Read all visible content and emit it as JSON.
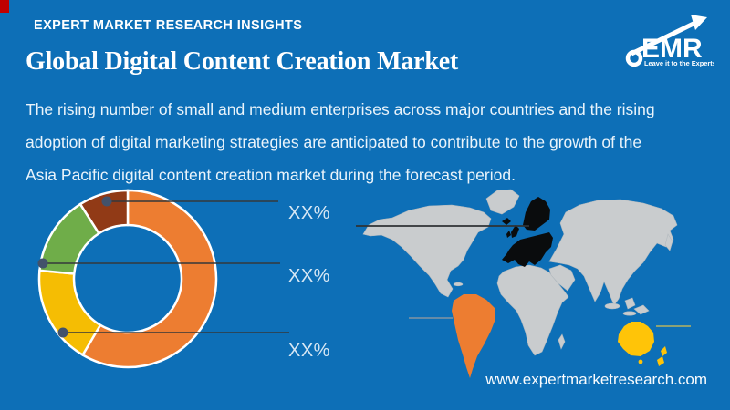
{
  "page": {
    "background": "#0D6FB7",
    "accent_red": "#C00000",
    "website": "www.expertmarketresearch.com"
  },
  "header": {
    "eyebrow": "EXPERT MARKET RESEARCH INSIGHTS",
    "title": "Global Digital Content Creation Market",
    "description_lines": [
      "The rising number of small and medium enterprises across major countries and the rising",
      "adoption of digital marketing strategies are anticipated to contribute to the growth of the",
      "Asia Pacific digital content creation market during the forecast period."
    ]
  },
  "logo": {
    "text": "EMR",
    "tagline": "Leave it to the Experts!"
  },
  "chart_data": {
    "type": "pie",
    "variant": "donut",
    "title": "Digital content creation market share by segment (values masked)",
    "direction": "clockwise",
    "start_angle_deg": 0,
    "segments": [
      {
        "name": "orange",
        "value": 58.5,
        "color": "#ED7D31",
        "label": ""
      },
      {
        "name": "yellow",
        "value": 18.0,
        "color": "#F5BD03",
        "label": "XX%"
      },
      {
        "name": "green",
        "value": 14.5,
        "color": "#6FAD49",
        "label": "XX%"
      },
      {
        "name": "brown",
        "value": 9.0,
        "color": "#913A16",
        "label": "XX%"
      }
    ],
    "callouts": [
      {
        "label": "XX%",
        "segment": "brown"
      },
      {
        "label": "XX%",
        "segment": "green"
      },
      {
        "label": "XX%",
        "segment": "yellow"
      }
    ],
    "legend_position": "none",
    "grid": false
  },
  "map": {
    "land_color": "#C9CCCE",
    "highlights": {
      "europe": {
        "name": "Europe",
        "color": "#0A0C0D"
      },
      "south_america": {
        "name": "South America",
        "color": "#ED7D31"
      },
      "australia": {
        "name": "Australia & New Zealand",
        "color": "#FFC408"
      }
    }
  }
}
